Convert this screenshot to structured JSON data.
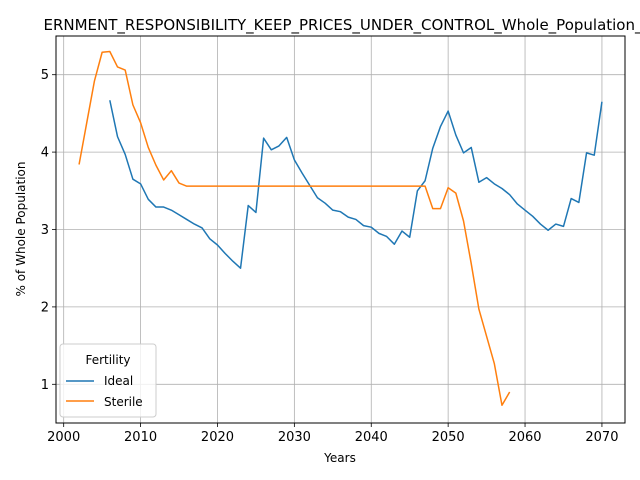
{
  "chart_data": {
    "type": "line",
    "title": "ERNMENT_RESPONSIBILITY_KEEP_PRICES_UNDER_CONTROL_Whole_Population_",
    "xlabel": "Years",
    "ylabel": "% of Whole Population",
    "xlim": [
      1999,
      2073
    ],
    "ylim": [
      0.5,
      5.5
    ],
    "xticks": [
      2000,
      2010,
      2020,
      2030,
      2040,
      2050,
      2060,
      2070
    ],
    "yticks": [
      1,
      2,
      3,
      4,
      5
    ],
    "grid": true,
    "legend": {
      "title": "Fertility",
      "placement": "lower-left"
    },
    "series": [
      {
        "name": "Ideal",
        "color": "#1f77b4",
        "x": [
          2006,
          2007,
          2008,
          2009,
          2010,
          2011,
          2012,
          2013,
          2014,
          2015,
          2016,
          2017,
          2018,
          2019,
          2020,
          2021,
          2022,
          2023,
          2024,
          2025,
          2026,
          2027,
          2028,
          2029,
          2030,
          2031,
          2032,
          2033,
          2034,
          2035,
          2036,
          2037,
          2038,
          2039,
          2040,
          2041,
          2042,
          2043,
          2044,
          2045,
          2046,
          2047,
          2048,
          2049,
          2050,
          2051,
          2052,
          2053,
          2054,
          2055,
          2056,
          2057,
          2058,
          2059,
          2060,
          2061,
          2062,
          2063,
          2064,
          2065,
          2066,
          2067,
          2068,
          2069,
          2070
        ],
        "y": [
          4.67,
          4.2,
          3.97,
          3.65,
          3.59,
          3.39,
          3.29,
          3.29,
          3.25,
          3.19,
          3.13,
          3.07,
          3.02,
          2.88,
          2.8,
          2.69,
          2.59,
          2.5,
          3.31,
          3.22,
          4.18,
          4.03,
          4.08,
          4.19,
          3.9,
          3.73,
          3.57,
          3.41,
          3.34,
          3.25,
          3.23,
          3.16,
          3.13,
          3.05,
          3.03,
          2.95,
          2.91,
          2.81,
          2.98,
          2.9,
          3.5,
          3.63,
          4.05,
          4.33,
          4.53,
          4.22,
          3.99,
          4.06,
          3.61,
          3.67,
          3.59,
          3.53,
          3.45,
          3.33,
          3.25,
          3.17,
          3.07,
          2.99,
          3.07,
          3.04,
          3.4,
          3.35,
          3.99,
          3.96,
          4.65
        ]
      },
      {
        "name": "Sterile",
        "color": "#ff7f0e",
        "x": [
          2002,
          2003,
          2004,
          2005,
          2006,
          2007,
          2008,
          2009,
          2010,
          2011,
          2012,
          2013,
          2014,
          2015,
          2016,
          2017,
          2018,
          2019,
          2020,
          2021,
          2022,
          2023,
          2024,
          2025,
          2026,
          2027,
          2028,
          2029,
          2030,
          2031,
          2032,
          2033,
          2034,
          2035,
          2036,
          2037,
          2038,
          2039,
          2040,
          2041,
          2042,
          2043,
          2044,
          2045,
          2046,
          2047,
          2048,
          2049,
          2050,
          2051,
          2052,
          2053,
          2054,
          2055,
          2056,
          2057,
          2058
        ],
        "y": [
          3.84,
          4.38,
          4.92,
          5.29,
          5.3,
          5.1,
          5.06,
          4.61,
          4.38,
          4.06,
          3.83,
          3.64,
          3.76,
          3.6,
          3.56,
          3.56,
          3.56,
          3.56,
          3.56,
          3.56,
          3.56,
          3.56,
          3.56,
          3.56,
          3.56,
          3.56,
          3.56,
          3.56,
          3.56,
          3.56,
          3.56,
          3.56,
          3.56,
          3.56,
          3.56,
          3.56,
          3.56,
          3.56,
          3.56,
          3.56,
          3.56,
          3.56,
          3.56,
          3.56,
          3.56,
          3.56,
          3.27,
          3.27,
          3.54,
          3.47,
          3.11,
          2.56,
          1.97,
          1.62,
          1.27,
          0.73,
          0.9
        ]
      }
    ]
  }
}
